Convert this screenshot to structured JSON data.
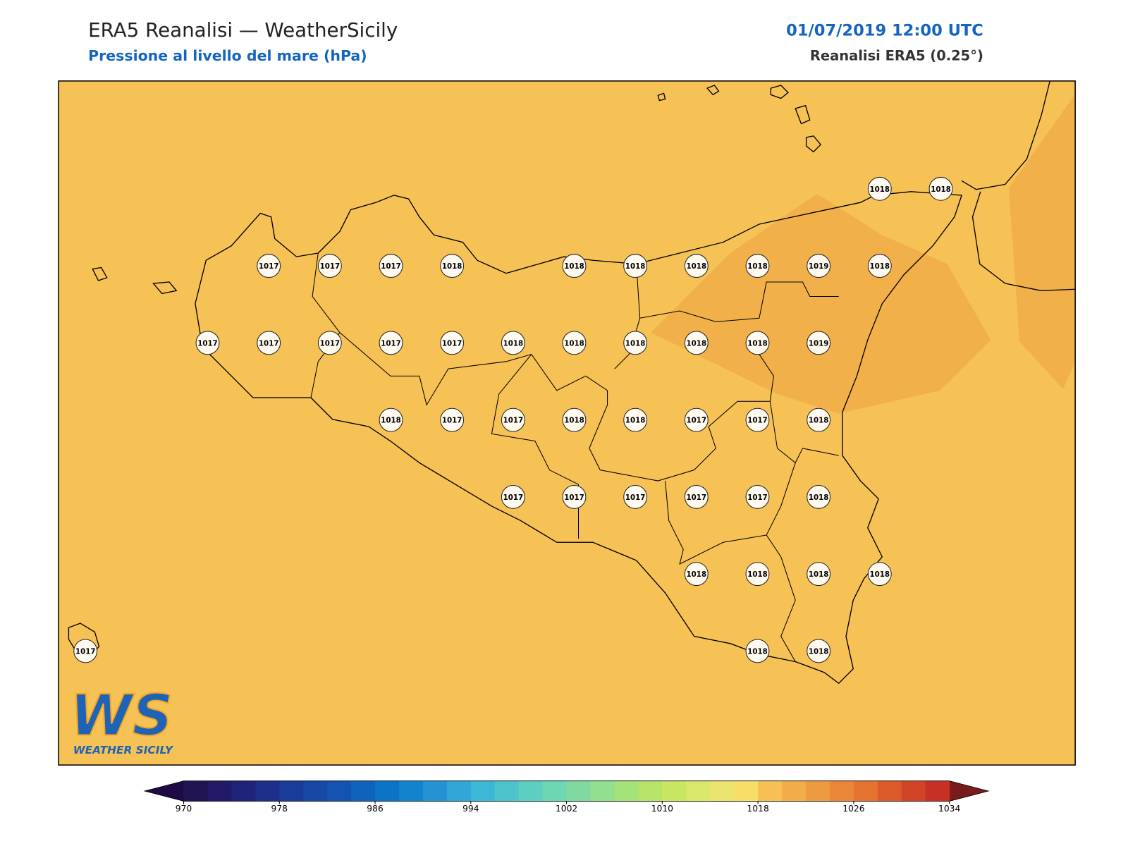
{
  "header": {
    "title": "ERA5 Reanalisi — WeatherSicily",
    "subtitle": "Pressione al livello del mare (hPa)",
    "datetime": "01/07/2019 12:00 UTC",
    "source": "Reanalisi ERA5 (0.25°)"
  },
  "map": {
    "lon_range": [
      11.89,
      16.05
    ],
    "lat_range": [
      36.38,
      38.6
    ],
    "background": "#f6c155",
    "high_color": "#f2b04a",
    "markers": [
      {
        "lon": 15.25,
        "lat": 38.25,
        "value": 1018
      },
      {
        "lon": 15.5,
        "lat": 38.25,
        "value": 1018
      },
      {
        "lon": 12.75,
        "lat": 38.0,
        "value": 1017
      },
      {
        "lon": 13.0,
        "lat": 38.0,
        "value": 1017
      },
      {
        "lon": 13.25,
        "lat": 38.0,
        "value": 1017
      },
      {
        "lon": 13.5,
        "lat": 38.0,
        "value": 1018
      },
      {
        "lon": 14.0,
        "lat": 38.0,
        "value": 1018
      },
      {
        "lon": 14.25,
        "lat": 38.0,
        "value": 1018
      },
      {
        "lon": 14.5,
        "lat": 38.0,
        "value": 1018
      },
      {
        "lon": 14.75,
        "lat": 38.0,
        "value": 1018
      },
      {
        "lon": 15.0,
        "lat": 38.0,
        "value": 1019
      },
      {
        "lon": 15.25,
        "lat": 38.0,
        "value": 1018
      },
      {
        "lon": 12.5,
        "lat": 37.75,
        "value": 1017
      },
      {
        "lon": 12.75,
        "lat": 37.75,
        "value": 1017
      },
      {
        "lon": 13.0,
        "lat": 37.75,
        "value": 1017
      },
      {
        "lon": 13.25,
        "lat": 37.75,
        "value": 1017
      },
      {
        "lon": 13.5,
        "lat": 37.75,
        "value": 1017
      },
      {
        "lon": 13.75,
        "lat": 37.75,
        "value": 1018
      },
      {
        "lon": 14.0,
        "lat": 37.75,
        "value": 1018
      },
      {
        "lon": 14.25,
        "lat": 37.75,
        "value": 1018
      },
      {
        "lon": 14.5,
        "lat": 37.75,
        "value": 1018
      },
      {
        "lon": 14.75,
        "lat": 37.75,
        "value": 1018
      },
      {
        "lon": 15.0,
        "lat": 37.75,
        "value": 1019
      },
      {
        "lon": 13.25,
        "lat": 37.5,
        "value": 1018
      },
      {
        "lon": 13.5,
        "lat": 37.5,
        "value": 1017
      },
      {
        "lon": 13.75,
        "lat": 37.5,
        "value": 1017
      },
      {
        "lon": 14.0,
        "lat": 37.5,
        "value": 1018
      },
      {
        "lon": 14.25,
        "lat": 37.5,
        "value": 1018
      },
      {
        "lon": 14.5,
        "lat": 37.5,
        "value": 1017
      },
      {
        "lon": 14.75,
        "lat": 37.5,
        "value": 1017
      },
      {
        "lon": 15.0,
        "lat": 37.5,
        "value": 1018
      },
      {
        "lon": 13.75,
        "lat": 37.25,
        "value": 1017
      },
      {
        "lon": 14.0,
        "lat": 37.25,
        "value": 1017
      },
      {
        "lon": 14.25,
        "lat": 37.25,
        "value": 1017
      },
      {
        "lon": 14.5,
        "lat": 37.25,
        "value": 1017
      },
      {
        "lon": 14.75,
        "lat": 37.25,
        "value": 1017
      },
      {
        "lon": 15.0,
        "lat": 37.25,
        "value": 1018
      },
      {
        "lon": 14.5,
        "lat": 37.0,
        "value": 1018
      },
      {
        "lon": 14.75,
        "lat": 37.0,
        "value": 1018
      },
      {
        "lon": 15.0,
        "lat": 37.0,
        "value": 1018
      },
      {
        "lon": 15.25,
        "lat": 37.0,
        "value": 1018
      },
      {
        "lon": 12.0,
        "lat": 36.75,
        "value": 1017
      },
      {
        "lon": 14.75,
        "lat": 36.75,
        "value": 1018
      },
      {
        "lon": 15.0,
        "lat": 36.75,
        "value": 1018
      }
    ]
  },
  "colorbar": {
    "ticks": [
      970,
      978,
      986,
      994,
      1002,
      1010,
      1018,
      1026,
      1034
    ],
    "under": "#1e0b45",
    "over": "#7a1b1b",
    "colors": [
      "#211452",
      "#221a66",
      "#1f237a",
      "#1c2f8a",
      "#1a3c99",
      "#1748a6",
      "#1454b0",
      "#1063bc",
      "#0b74c7",
      "#1483cd",
      "#2592d3",
      "#33a6d8",
      "#3cb7d5",
      "#4dc3cb",
      "#5dcfc1",
      "#6dd6b2",
      "#80daa0",
      "#92df8d",
      "#a4e27a",
      "#b6e468",
      "#c8e662",
      "#d9e86a",
      "#ebe46e",
      "#f8de66",
      "#f6c055",
      "#f2ac4a",
      "#ee9a40",
      "#ea8637",
      "#e5722f",
      "#dc5a2a",
      "#d24427",
      "#c73125"
    ]
  },
  "logo": {
    "mark": "WS",
    "name": "WEATHER SICILY"
  }
}
